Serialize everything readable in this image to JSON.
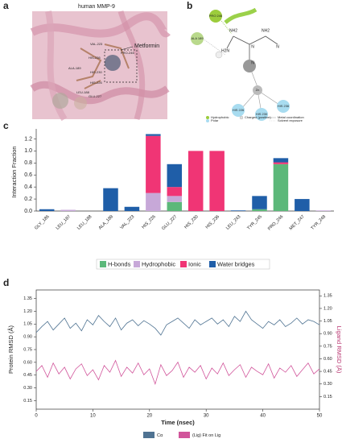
{
  "panel_labels": [
    "a",
    "b",
    "c",
    "d"
  ],
  "panel_a": {
    "title": "human MMP-9",
    "label": "Metformin",
    "residues": [
      "VAL-223",
      "PRO-246",
      "HIS-236",
      "HIS-230",
      "HIS-226",
      "ALA-189",
      "LEU-188",
      "GLU-227"
    ]
  },
  "panel_b": {
    "nodes": [
      "PRO 246",
      "ALA 189",
      "Zn",
      "HIS 226",
      "HIS 230",
      "HIS 236"
    ],
    "atoms": [
      "NH2",
      "NH2",
      "H2N",
      "N",
      "N",
      "N"
    ],
    "legend": [
      "Hydrophobic",
      "Polar",
      "Charged (positive)",
      "Metal coordination",
      "Solvent exposure"
    ]
  },
  "chart_data": [
    {
      "type": "bar",
      "ylabel": "Interaction Fraction",
      "categories": [
        "GLY_186",
        "LEU_187",
        "LEU_188",
        "ALA_189",
        "VAL_223",
        "HIS_226",
        "GLU_227",
        "HIS_230",
        "HIS_236",
        "LEU_243",
        "TYR_245",
        "PRO_246",
        "MET_247",
        "TYR_248"
      ],
      "series": [
        {
          "name": "H-bonds",
          "color": "#5cb87a",
          "values": [
            0,
            0,
            0,
            0,
            0,
            0,
            0.15,
            0,
            0,
            0,
            0.03,
            0.78,
            0,
            0
          ]
        },
        {
          "name": "Hydrophobic",
          "color": "#c7a8d8",
          "values": [
            0,
            0.02,
            0,
            0,
            0,
            0.3,
            0.1,
            0,
            0,
            0,
            0,
            0,
            0,
            0.01
          ]
        },
        {
          "name": "Ionic",
          "color": "#f03575",
          "values": [
            0,
            0,
            0,
            0,
            0,
            0.95,
            0.15,
            1.0,
            1.0,
            0,
            0,
            0.03,
            0,
            0
          ]
        },
        {
          "name": "Water bridges",
          "color": "#1f5ea8",
          "values": [
            0.03,
            0,
            0,
            0.38,
            0.07,
            0.03,
            0.38,
            0,
            0,
            0.01,
            0.22,
            0.07,
            0.2,
            0
          ]
        }
      ],
      "ylim": [
        0,
        1.3
      ],
      "yticks": [
        {
          "value": 0,
          "label": "0.0"
        },
        0.2,
        0.4,
        0.6,
        0.8,
        {
          "value": 1,
          "label": "1.0"
        },
        1.2
      ]
    },
    {
      "type": "line",
      "xlabel": "Time (nsec)",
      "ylabel": "Protein RMSD (Å)",
      "y2label": "Ligand RMSD (Å)",
      "x": [
        0,
        1,
        2,
        3,
        4,
        5,
        6,
        7,
        8,
        9,
        10,
        11,
        12,
        13,
        14,
        15,
        16,
        17,
        18,
        19,
        20,
        21,
        22,
        23,
        24,
        25,
        26,
        27,
        28,
        29,
        30,
        31,
        32,
        33,
        34,
        35,
        36,
        37,
        38,
        39,
        40,
        41,
        42,
        43,
        44,
        45,
        46,
        47,
        48,
        49,
        50
      ],
      "series": [
        {
          "name": "Cα",
          "color": "#4f7392",
          "values": [
            0.95,
            1.02,
            1.08,
            0.98,
            1.05,
            1.12,
            1.0,
            1.06,
            0.97,
            1.1,
            1.04,
            1.15,
            1.08,
            1.02,
            1.12,
            0.98,
            1.06,
            1.1,
            1.03,
            1.09,
            1.05,
            1.0,
            0.92,
            1.04,
            1.08,
            1.12,
            1.06,
            1.0,
            1.1,
            1.04,
            1.08,
            1.12,
            1.05,
            1.1,
            1.02,
            1.14,
            1.08,
            1.2,
            1.1,
            1.05,
            1.0,
            1.08,
            1.04,
            1.1,
            1.02,
            1.06,
            1.12,
            1.05,
            1.1,
            1.08,
            1.04
          ]
        },
        {
          "name": "(Lig) Fit on Lig",
          "color": "#d1559b",
          "axis": "y2",
          "values": [
            0.45,
            0.52,
            0.38,
            0.55,
            0.42,
            0.5,
            0.36,
            0.48,
            0.54,
            0.4,
            0.47,
            0.35,
            0.52,
            0.44,
            0.58,
            0.39,
            0.5,
            0.43,
            0.55,
            0.41,
            0.48,
            0.3,
            0.53,
            0.4,
            0.46,
            0.56,
            0.38,
            0.5,
            0.44,
            0.52,
            0.36,
            0.49,
            0.42,
            0.55,
            0.4,
            0.47,
            0.53,
            0.38,
            0.5,
            0.45,
            0.41,
            0.54,
            0.37,
            0.49,
            0.44,
            0.52,
            0.39,
            0.47,
            0.55,
            0.42,
            0.48
          ]
        }
      ],
      "xlim": [
        0,
        50
      ],
      "xticks": [
        0,
        10,
        20,
        30,
        40,
        50
      ],
      "ylim": [
        0.05,
        1.45
      ],
      "yticks": [
        0.15,
        {
          "value": 0.3,
          "label": "0.30"
        },
        0.45,
        {
          "value": 0.6,
          "label": "0.60"
        },
        0.75,
        {
          "value": 0.9,
          "label": "0.90"
        },
        1.05,
        {
          "value": 1.2,
          "label": "1.20"
        },
        1.35
      ],
      "y2lim": [
        0.0,
        1.42
      ],
      "y2ticks": [
        0.15,
        {
          "value": 0.3,
          "label": "0.30"
        },
        0.45,
        {
          "value": 0.6,
          "label": "0.60"
        },
        0.75,
        {
          "value": 0.9,
          "label": "0.90"
        },
        1.05,
        {
          "value": 1.2,
          "label": "1.20"
        },
        1.35
      ]
    }
  ]
}
